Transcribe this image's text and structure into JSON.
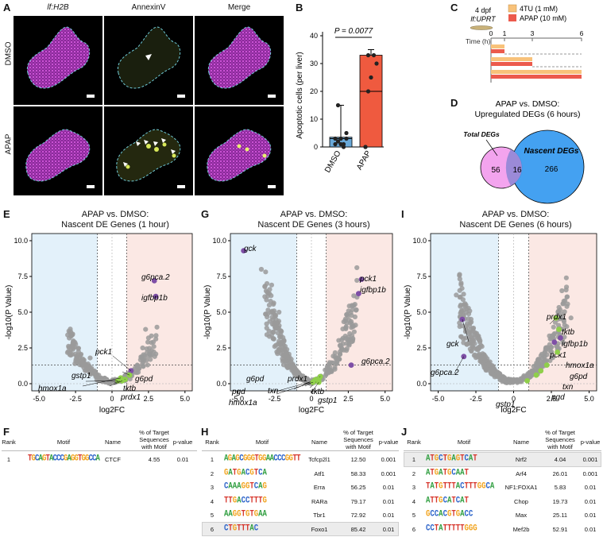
{
  "panel_letters": {
    "A": "A",
    "B": "B",
    "C": "C",
    "D": "D",
    "E": "E",
    "F": "F",
    "G": "G",
    "H": "H",
    "I": "I",
    "J": "J"
  },
  "panelA": {
    "columns": [
      "lf:H2B",
      "AnnexinV",
      "Merge"
    ],
    "rows": [
      "DMSO",
      "APAP"
    ]
  },
  "panelB": {
    "ylabel": "Apoptotic cells (per liver)",
    "pvalue": "P = 0.0077",
    "yticks": [
      "0",
      "10",
      "20",
      "30",
      "40"
    ],
    "categories": [
      "DMSO",
      "APAP"
    ]
  },
  "panelC": {
    "stage": "4 dpf",
    "fish": "lf:UPRT",
    "legend": [
      {
        "label": "4TU (1 mM)",
        "color": "#f8c27a"
      },
      {
        "label": "APAP (10 mM)",
        "color": "#ec5a4c"
      }
    ],
    "time_label": "Time (h)",
    "ticks": [
      "0",
      "1",
      "3",
      "6"
    ]
  },
  "panelD": {
    "title_line1": "APAP vs. DMSO:",
    "title_line2": "Upregulated DEGs (6 hours)",
    "total_label": "Total DEGs",
    "nascent_label": "Nascent DEGs",
    "only_total": "56",
    "overlap": "16",
    "only_nascent": "266"
  },
  "volcano_common": {
    "xlabel": "log2FC",
    "ylabel": "-log10(P Value)",
    "xticks": [
      "-5.0",
      "-2.5",
      "0",
      "2.5",
      "5.0"
    ],
    "yticks": [
      "0.0",
      "2.5",
      "5.0",
      "7.5",
      "10.0"
    ]
  },
  "panelE": {
    "title1": "APAP vs. DMSO:",
    "title2": "Nascent DE Genes (1 hour)"
  },
  "panelG": {
    "title1": "APAP vs. DMSO:",
    "title2": "Nascent DE Genes (3 hours)"
  },
  "panelI": {
    "title1": "APAP vs. DMSO:",
    "title2": "Nascent DE Genes (6 hours)"
  },
  "table_headers": {
    "rank": "Rank",
    "motif": "Motif",
    "name": "Name",
    "pct": "% of Target Sequences with Motif",
    "pval": "p-value"
  },
  "panelF": {
    "rows": [
      {
        "rank": "1",
        "motif": "TGCAGTACCCGAGGTGGCCA",
        "name": "CTCF",
        "pct": "4.55",
        "p": "0.01"
      }
    ]
  },
  "panelH": {
    "rows": [
      {
        "rank": "1",
        "motif": "AGAGCGGGTGGAACCCGGTT",
        "name": "Tcfcp2l1",
        "pct": "12.50",
        "p": "0.001"
      },
      {
        "rank": "2",
        "motif": "GATGACGTCA",
        "name": "Atf1",
        "pct": "58.33",
        "p": "0.001"
      },
      {
        "rank": "3",
        "motif": "CAAAGGTCAG",
        "name": "Erra",
        "pct": "56.25",
        "p": "0.01"
      },
      {
        "rank": "4",
        "motif": "TTGACCTTTG",
        "name": "RARa",
        "pct": "79.17",
        "p": "0.01"
      },
      {
        "rank": "5",
        "motif": "AAGGTGTGAA",
        "name": "Tbr1",
        "pct": "72.92",
        "p": "0.01"
      },
      {
        "rank": "6",
        "motif": "CTGTTTAC",
        "name": "Foxo1",
        "pct": "85.42",
        "p": "0.01"
      }
    ]
  },
  "panelJ": {
    "rows": [
      {
        "rank": "1",
        "motif": "ATGCTGAGTCAT",
        "name": "Nrf2",
        "pct": "4.04",
        "p": "0.001"
      },
      {
        "rank": "2",
        "motif": "ATGATGCAAT",
        "name": "Arf4",
        "pct": "26.01",
        "p": "0.001"
      },
      {
        "rank": "3",
        "motif": "TATGTTTACTTTGGCA",
        "name": "NF1:FOXA1",
        "pct": "5.83",
        "p": "0.01"
      },
      {
        "rank": "4",
        "motif": "ATTGCATCAT",
        "name": "Chop",
        "pct": "19.73",
        "p": "0.01"
      },
      {
        "rank": "5",
        "motif": "GCCACGTGACC",
        "name": "Max",
        "pct": "25.11",
        "p": "0.01"
      },
      {
        "rank": "6",
        "motif": "CCTATTTTTGGG",
        "name": "Mef2b",
        "pct": "52.91",
        "p": "0.01"
      }
    ]
  },
  "chart_data": [
    {
      "type": "bar",
      "panel": "B",
      "categories": [
        "DMSO",
        "APAP"
      ],
      "values": [
        3.5,
        33
      ],
      "points": [
        [
          3,
          2,
          3,
          0,
          5,
          1,
          15,
          1,
          1,
          3
        ],
        [
          0,
          20,
          25,
          33,
          30,
          0,
          33
        ]
      ],
      "ylabel": "Apoptotic cells (per liver)",
      "ylim": [
        0,
        40
      ],
      "colors": [
        "#6aa9d9",
        "#ef5a3f"
      ]
    },
    {
      "type": "scatter",
      "panel": "E",
      "title": "APAP vs. DMSO: Nascent DE Genes (1 hour)",
      "xlim": [
        -5.5,
        5.5
      ],
      "ylim": [
        -0.5,
        10.5
      ],
      "xlabel": "log2FC",
      "ylabel": "-log10(P Value)",
      "highlighted": [
        {
          "gene": "g6pca.2",
          "x": 2.9,
          "y": 7.2,
          "color": "purple"
        },
        {
          "gene": "igfbp1b",
          "x": 3.0,
          "y": 6.1,
          "color": "purple"
        },
        {
          "gene": "pck1",
          "x": 1.3,
          "y": 0.9,
          "color": "purple"
        },
        {
          "gene": "g6pd",
          "x": 1.2,
          "y": 0.6,
          "color": "green"
        },
        {
          "gene": "gstp1",
          "x": 0.4,
          "y": 0.2,
          "color": "green"
        },
        {
          "gene": "hmox1a",
          "x": 0.6,
          "y": 0.4,
          "color": "green"
        },
        {
          "gene": "tktb",
          "x": 0.9,
          "y": 0.3,
          "color": "green"
        },
        {
          "gene": "prdx1",
          "x": 0.7,
          "y": 0.2,
          "color": "green"
        }
      ]
    },
    {
      "type": "scatter",
      "panel": "G",
      "title": "APAP vs. DMSO: Nascent DE Genes (3 hours)",
      "xlim": [
        -5.5,
        5.5
      ],
      "ylim": [
        -0.5,
        10.5
      ],
      "xlabel": "log2FC",
      "ylabel": "-log10(P Value)",
      "highlighted": [
        {
          "gene": "gck",
          "x": -4.6,
          "y": 9.3,
          "color": "purple"
        },
        {
          "gene": "pck1",
          "x": 3.4,
          "y": 7.3,
          "color": "purple"
        },
        {
          "gene": "igfbp1b",
          "x": 3.2,
          "y": 6.3,
          "color": "purple"
        },
        {
          "gene": "g6pca.2",
          "x": 2.7,
          "y": 1.3,
          "color": "purple"
        },
        {
          "gene": "g6pd",
          "x": 0.6,
          "y": 0.5,
          "color": "green"
        },
        {
          "gene": "txn",
          "x": 0.3,
          "y": 0.3,
          "color": "green"
        },
        {
          "gene": "prdx1",
          "x": 0.5,
          "y": 0.3,
          "color": "green"
        },
        {
          "gene": "pgd",
          "x": 0.2,
          "y": 0.2,
          "color": "green"
        },
        {
          "gene": "tktb",
          "x": 0.4,
          "y": 0.2,
          "color": "green"
        },
        {
          "gene": "hmox1a",
          "x": 0.1,
          "y": 0.1,
          "color": "green"
        },
        {
          "gene": "gstp1",
          "x": 0.5,
          "y": 0.1,
          "color": "green"
        }
      ]
    },
    {
      "type": "scatter",
      "panel": "I",
      "title": "APAP vs. DMSO: Nascent DE Genes (6 hours)",
      "xlim": [
        -5.5,
        5.5
      ],
      "ylim": [
        -0.5,
        10.5
      ],
      "xlabel": "log2FC",
      "ylabel": "-log10(P Value)",
      "highlighted": [
        {
          "gene": "gck",
          "x": -3.4,
          "y": 4.5,
          "color": "purple"
        },
        {
          "gene": "g6pca.2",
          "x": -3.3,
          "y": 1.9,
          "color": "purple"
        },
        {
          "gene": "prdx1",
          "x": 2.8,
          "y": 4.6,
          "color": "green"
        },
        {
          "gene": "tktb",
          "x": 3.0,
          "y": 3.8,
          "color": "green"
        },
        {
          "gene": "igfbp1b",
          "x": 3.1,
          "y": 3.2,
          "color": "purple"
        },
        {
          "gene": "pck1",
          "x": 2.7,
          "y": 2.9,
          "color": "purple"
        },
        {
          "gene": "hmox1a",
          "x": 2.9,
          "y": 2.2,
          "color": "green"
        },
        {
          "gene": "g6pd",
          "x": 2.2,
          "y": 1.3,
          "color": "green"
        },
        {
          "gene": "txn",
          "x": 1.8,
          "y": 0.9,
          "color": "green"
        },
        {
          "gene": "pgd",
          "x": 1.5,
          "y": 0.6,
          "color": "green"
        },
        {
          "gene": "gstp1",
          "x": 0.9,
          "y": 0.2,
          "color": "green"
        }
      ]
    }
  ]
}
